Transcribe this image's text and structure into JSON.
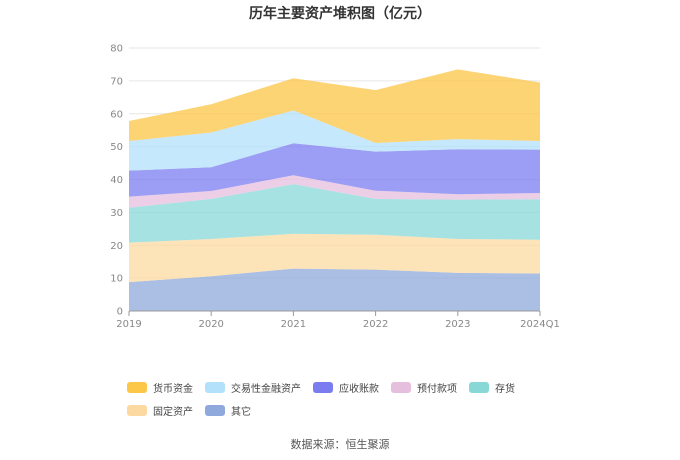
{
  "chart_data": {
    "type": "area",
    "stacked": true,
    "title": "历年主要资产堆积图（亿元）",
    "categories": [
      "2019",
      "2020",
      "2021",
      "2022",
      "2023",
      "2024Q1"
    ],
    "ylim": [
      0,
      80
    ],
    "yticks": [
      0,
      10,
      20,
      30,
      40,
      50,
      60,
      70,
      80
    ],
    "grid": true,
    "legend_position": "bottom",
    "series": [
      {
        "name": "其它",
        "color": "#8fa9dc",
        "values": [
          8.8,
          10.6,
          12.9,
          12.6,
          11.6,
          11.4
        ]
      },
      {
        "name": "固定资产",
        "color": "#fcd9a0",
        "values": [
          12.0,
          11.3,
          10.6,
          10.6,
          10.3,
          10.3
        ]
      },
      {
        "name": "存货",
        "color": "#88d8d8",
        "values": [
          10.6,
          12.2,
          15.1,
          10.9,
          12.0,
          12.3
        ]
      },
      {
        "name": "预付款项",
        "color": "#e6bfdf",
        "values": [
          3.4,
          2.4,
          2.7,
          2.5,
          1.6,
          1.9
        ]
      },
      {
        "name": "应收账款",
        "color": "#7b7cf0",
        "values": [
          7.9,
          7.2,
          9.7,
          11.9,
          13.7,
          13.2
        ]
      },
      {
        "name": "交易性金融资产",
        "color": "#b3e0fb",
        "values": [
          9.0,
          10.6,
          10.0,
          2.6,
          3.1,
          2.6
        ]
      },
      {
        "name": "货币资金",
        "color": "#fcc646",
        "values": [
          6.1,
          8.6,
          9.8,
          16.1,
          21.2,
          17.8
        ]
      }
    ]
  },
  "legend_order": [
    "货币资金",
    "交易性金融资产",
    "应收账款",
    "预付款项",
    "存货",
    "固定资产",
    "其它"
  ],
  "source": "数据来源：恒生聚源"
}
